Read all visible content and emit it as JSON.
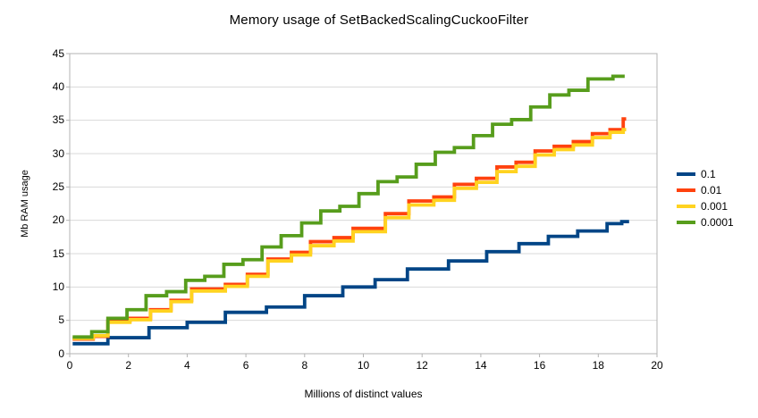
{
  "chart_data": {
    "type": "line",
    "line_shape": "step-after",
    "title": "Memory usage of SetBackedScalingCuckooFilter",
    "xlabel": "Millions of distinct values",
    "ylabel": "Mb RAM usage",
    "xlim": [
      0,
      20
    ],
    "ylim": [
      0,
      45
    ],
    "x_ticks": [
      0,
      2,
      4,
      6,
      8,
      10,
      12,
      14,
      16,
      18,
      20
    ],
    "y_ticks": [
      0,
      5,
      10,
      15,
      20,
      25,
      30,
      35,
      40,
      45
    ],
    "grid": "horizontal",
    "legend_position": "right",
    "series": [
      {
        "name": "0.1",
        "color": "#004586",
        "points": [
          [
            0.1,
            1.5
          ],
          [
            1.3,
            2.4
          ],
          [
            2.7,
            3.9
          ],
          [
            4.0,
            4.7
          ],
          [
            5.3,
            6.2
          ],
          [
            6.7,
            7.0
          ],
          [
            8.0,
            8.7
          ],
          [
            9.3,
            10.0
          ],
          [
            10.4,
            11.1
          ],
          [
            11.5,
            12.7
          ],
          [
            12.9,
            13.9
          ],
          [
            14.2,
            15.3
          ],
          [
            15.3,
            16.5
          ],
          [
            16.3,
            17.6
          ],
          [
            17.3,
            18.4
          ],
          [
            18.3,
            19.5
          ],
          [
            18.8,
            19.8
          ],
          [
            19.05,
            19.8
          ]
        ]
      },
      {
        "name": "0.01",
        "color": "#FF420E",
        "points": [
          [
            0.1,
            2.2
          ],
          [
            0.8,
            2.6
          ],
          [
            1.3,
            4.9
          ],
          [
            2.05,
            5.3
          ],
          [
            2.75,
            6.6
          ],
          [
            3.45,
            8.0
          ],
          [
            4.15,
            9.7
          ],
          [
            5.3,
            10.4
          ],
          [
            6.05,
            11.9
          ],
          [
            6.75,
            14.2
          ],
          [
            7.55,
            15.2
          ],
          [
            8.2,
            16.8
          ],
          [
            9.0,
            17.4
          ],
          [
            9.65,
            18.8
          ],
          [
            10.75,
            21.0
          ],
          [
            11.55,
            22.9
          ],
          [
            12.4,
            23.5
          ],
          [
            13.1,
            25.4
          ],
          [
            13.85,
            26.3
          ],
          [
            14.55,
            28.0
          ],
          [
            15.2,
            28.7
          ],
          [
            15.85,
            30.4
          ],
          [
            16.5,
            31.1
          ],
          [
            17.15,
            31.8
          ],
          [
            17.8,
            33.0
          ],
          [
            18.4,
            33.6
          ],
          [
            18.85,
            35.2
          ],
          [
            18.95,
            35.2
          ]
        ]
      },
      {
        "name": "0.001",
        "color": "#FFD320",
        "points": [
          [
            0.1,
            2.3
          ],
          [
            0.8,
            2.7
          ],
          [
            1.3,
            4.7
          ],
          [
            2.05,
            5.1
          ],
          [
            2.75,
            6.4
          ],
          [
            3.45,
            7.8
          ],
          [
            4.15,
            9.4
          ],
          [
            5.3,
            10.1
          ],
          [
            6.05,
            11.6
          ],
          [
            6.75,
            13.9
          ],
          [
            7.55,
            14.8
          ],
          [
            8.2,
            16.2
          ],
          [
            9.0,
            16.9
          ],
          [
            9.65,
            18.3
          ],
          [
            10.75,
            20.4
          ],
          [
            11.55,
            22.3
          ],
          [
            12.4,
            23.0
          ],
          [
            13.1,
            24.8
          ],
          [
            13.85,
            25.7
          ],
          [
            14.55,
            27.3
          ],
          [
            15.2,
            28.1
          ],
          [
            15.85,
            29.8
          ],
          [
            16.5,
            30.6
          ],
          [
            17.15,
            31.3
          ],
          [
            17.8,
            32.4
          ],
          [
            18.4,
            33.2
          ],
          [
            18.85,
            33.6
          ],
          [
            18.95,
            33.6
          ]
        ]
      },
      {
        "name": "0.0001",
        "color": "#579D1C",
        "points": [
          [
            0.1,
            2.5
          ],
          [
            0.75,
            3.3
          ],
          [
            1.3,
            5.3
          ],
          [
            1.95,
            6.6
          ],
          [
            2.6,
            8.7
          ],
          [
            3.3,
            9.3
          ],
          [
            3.95,
            11.0
          ],
          [
            4.6,
            11.6
          ],
          [
            5.25,
            13.4
          ],
          [
            5.9,
            14.1
          ],
          [
            6.55,
            16.0
          ],
          [
            7.2,
            17.7
          ],
          [
            7.9,
            19.6
          ],
          [
            8.55,
            21.4
          ],
          [
            9.2,
            22.1
          ],
          [
            9.85,
            24.0
          ],
          [
            10.5,
            25.8
          ],
          [
            11.15,
            26.5
          ],
          [
            11.8,
            28.4
          ],
          [
            12.45,
            30.2
          ],
          [
            13.1,
            30.9
          ],
          [
            13.75,
            32.7
          ],
          [
            14.4,
            34.4
          ],
          [
            15.05,
            35.1
          ],
          [
            15.7,
            37.0
          ],
          [
            16.35,
            38.8
          ],
          [
            17.0,
            39.5
          ],
          [
            17.65,
            41.2
          ],
          [
            18.5,
            41.6
          ],
          [
            18.9,
            41.6
          ]
        ]
      }
    ]
  },
  "colors": {
    "background": "#ffffff",
    "gridline": "#d9d9d9",
    "frame": "#b3b3b3",
    "text": "#000000"
  }
}
